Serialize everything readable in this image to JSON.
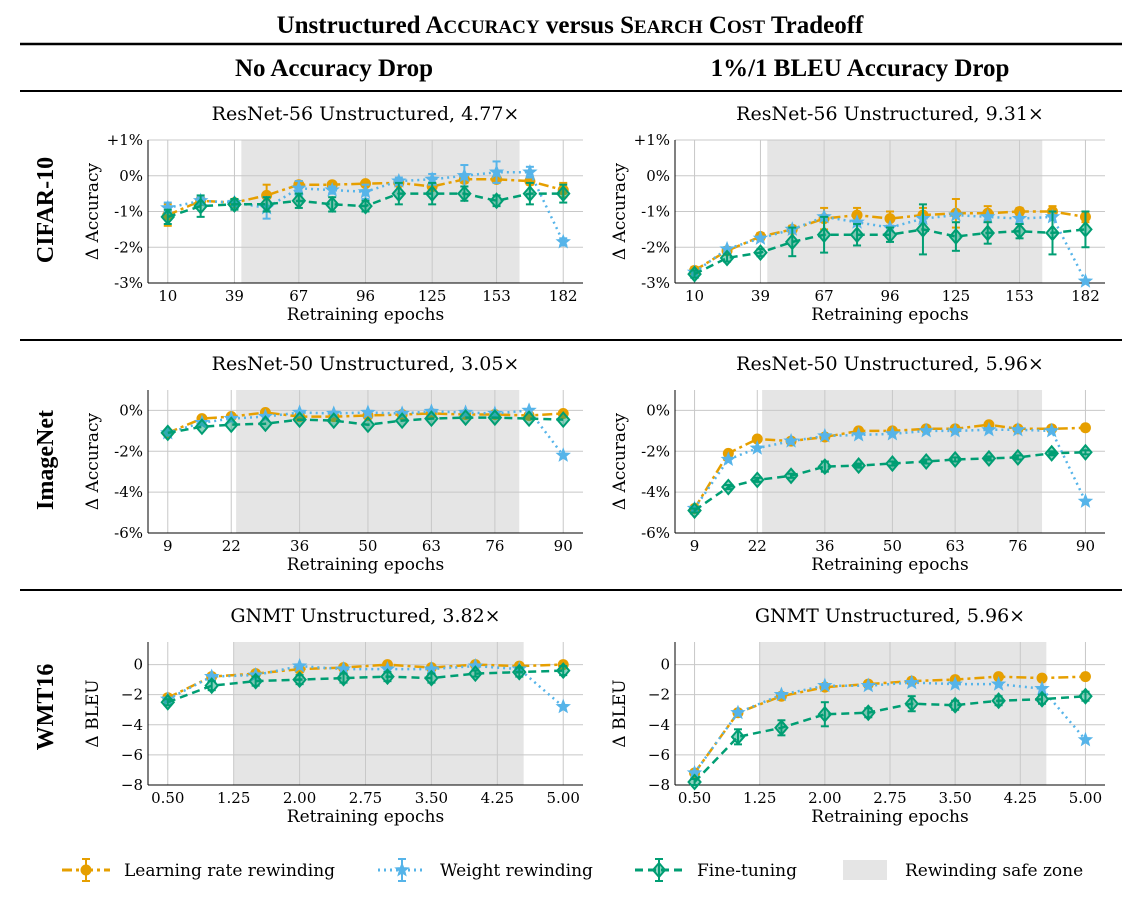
{
  "figure": {
    "title_parts": [
      "Unstructured ",
      "A",
      "CCURACY",
      " versus ",
      "S",
      "EARCH",
      " C",
      "OST",
      " Tradeoff"
    ],
    "col_headers": [
      "No Accuracy Drop",
      "1%/1 BLEU Accuracy Drop"
    ],
    "row_labels": [
      "CIFAR-10",
      "ImageNet",
      "WMT16"
    ],
    "xlabel": "Retraining epochs",
    "colors": {
      "lr": "#E69F00",
      "wr": "#56B4E9",
      "ft": "#009E73",
      "safe": "#E5E5E5",
      "grid": "#C8C8C8"
    }
  },
  "legend": [
    {
      "key": "lr",
      "label": "Learning rate rewinding",
      "marker": "circle",
      "dash": "dashdot"
    },
    {
      "key": "wr",
      "label": "Weight rewinding",
      "marker": "star",
      "dash": "dotted"
    },
    {
      "key": "ft",
      "label": "Fine-tuning",
      "marker": "diamond",
      "dash": "dashed"
    },
    {
      "key": "safe",
      "label": "Rewinding safe zone",
      "marker": "patch",
      "dash": "none"
    }
  ],
  "chart_data": [
    {
      "type": "line",
      "title": "ResNet-56 Unstructured, 4.77×",
      "ylabel": "Δ Accuracy",
      "x": [
        10,
        24.3,
        39,
        53,
        67,
        81.5,
        96,
        110.5,
        125,
        139,
        153,
        167.5,
        182
      ],
      "xticks": [
        10,
        39,
        67,
        96,
        125,
        153,
        182
      ],
      "xtick_labels": [
        "10",
        "39",
        "67",
        "96",
        "125",
        "153",
        "182"
      ],
      "yticks": [
        -3,
        -2,
        -1,
        0,
        1
      ],
      "ytick_labels": [
        "-3%",
        "-2%",
        "-1%",
        "0%",
        "+1%"
      ],
      "ylim": [
        -3,
        1
      ],
      "safe_zone": [
        42,
        163
      ],
      "series": [
        {
          "name": "Learning rate rewinding",
          "key": "lr",
          "values": [
            -1.1,
            -0.7,
            -0.75,
            -0.55,
            -0.25,
            -0.25,
            -0.22,
            -0.2,
            -0.3,
            -0.1,
            -0.1,
            -0.15,
            -0.4
          ],
          "err": [
            0.3,
            0.1,
            0.1,
            0.3,
            0.1,
            0.05,
            0.05,
            0.05,
            0.1,
            0.1,
            0.1,
            0.1,
            0.2
          ]
        },
        {
          "name": "Weight rewinding",
          "key": "wr",
          "values": [
            -0.9,
            -0.7,
            -0.75,
            -0.9,
            -0.35,
            -0.4,
            -0.45,
            -0.15,
            -0.1,
            0.0,
            0.1,
            0.1,
            -1.85
          ],
          "err": [
            0.15,
            0.1,
            0.1,
            0.3,
            0.2,
            0.1,
            0.2,
            0.1,
            0.15,
            0.3,
            0.3,
            0.15,
            0.1
          ]
        },
        {
          "name": "Fine-tuning",
          "key": "ft",
          "values": [
            -1.15,
            -0.85,
            -0.8,
            -0.8,
            -0.7,
            -0.8,
            -0.85,
            -0.5,
            -0.5,
            -0.5,
            -0.7,
            -0.5,
            -0.5
          ],
          "err": [
            0.2,
            0.3,
            0.15,
            0.2,
            0.2,
            0.2,
            0.15,
            0.3,
            0.3,
            0.2,
            0.15,
            0.3,
            0.25
          ]
        }
      ]
    },
    {
      "type": "line",
      "title": "ResNet-56 Unstructured, 9.31×",
      "ylabel": "Δ Accuracy",
      "x": [
        10,
        24.3,
        39,
        53,
        67,
        81.5,
        96,
        110.5,
        125,
        139,
        153,
        167.5,
        182
      ],
      "xticks": [
        10,
        39,
        67,
        96,
        125,
        153,
        182
      ],
      "xtick_labels": [
        "10",
        "39",
        "67",
        "96",
        "125",
        "153",
        "182"
      ],
      "yticks": [
        -3,
        -2,
        -1,
        0,
        1
      ],
      "ytick_labels": [
        "-3%",
        "-2%",
        "-1%",
        "0%",
        "+1%"
      ],
      "ylim": [
        -3,
        1
      ],
      "safe_zone": [
        42,
        163
      ],
      "series": [
        {
          "name": "Learning rate rewinding",
          "key": "lr",
          "values": [
            -2.65,
            -2.1,
            -1.7,
            -1.5,
            -1.2,
            -1.1,
            -1.2,
            -1.1,
            -1.05,
            -1.05,
            -1.0,
            -1.0,
            -1.15
          ],
          "err": [
            0.1,
            0.1,
            0.1,
            0.1,
            0.3,
            0.2,
            0.2,
            0.2,
            0.4,
            0.2,
            0.1,
            0.15,
            0.15
          ]
        },
        {
          "name": "Weight rewinding",
          "key": "wr",
          "values": [
            -2.7,
            -2.05,
            -1.75,
            -1.5,
            -1.15,
            -1.3,
            -1.45,
            -1.2,
            -1.1,
            -1.15,
            -1.2,
            -1.15,
            -2.95
          ]
        },
        {
          "name": "Fine-tuning",
          "key": "ft",
          "values": [
            -2.75,
            -2.3,
            -2.15,
            -1.85,
            -1.65,
            -1.65,
            -1.65,
            -1.5,
            -1.7,
            -1.6,
            -1.55,
            -1.6,
            -1.5
          ],
          "err": [
            0.1,
            0.1,
            0.1,
            0.4,
            0.5,
            0.3,
            0.2,
            0.7,
            0.4,
            0.3,
            0.2,
            0.6,
            0.5
          ]
        }
      ]
    },
    {
      "type": "line",
      "title": "ResNet-50 Unstructured, 3.05×",
      "ylabel": "Δ Accuracy",
      "x": [
        9,
        16,
        22,
        29,
        36,
        43,
        50,
        57,
        63,
        70,
        76,
        83,
        90
      ],
      "xticks": [
        9,
        22,
        36,
        50,
        63,
        76,
        90
      ],
      "xtick_labels": [
        "9",
        "22",
        "36",
        "50",
        "63",
        "76",
        "90"
      ],
      "yticks": [
        -6,
        -4,
        -2,
        0
      ],
      "ytick_labels": [
        "-6%",
        "-4%",
        "-2%",
        "0%"
      ],
      "ylim": [
        -6,
        1
      ],
      "safe_zone": [
        23,
        81
      ],
      "series": [
        {
          "name": "Learning rate rewinding",
          "key": "lr",
          "values": [
            -1.1,
            -0.4,
            -0.3,
            -0.1,
            -0.3,
            -0.3,
            -0.25,
            -0.2,
            -0.15,
            -0.2,
            -0.2,
            -0.25,
            -0.15
          ]
        },
        {
          "name": "Weight rewinding",
          "key": "wr",
          "values": [
            -1.1,
            -0.6,
            -0.4,
            -0.3,
            -0.1,
            -0.15,
            -0.1,
            -0.15,
            -0.05,
            -0.1,
            -0.15,
            0.0,
            -2.2
          ]
        },
        {
          "name": "Fine-tuning",
          "key": "ft",
          "values": [
            -1.1,
            -0.8,
            -0.7,
            -0.65,
            -0.45,
            -0.5,
            -0.7,
            -0.5,
            -0.4,
            -0.35,
            -0.35,
            -0.4,
            -0.45
          ]
        }
      ]
    },
    {
      "type": "line",
      "title": "ResNet-50 Unstructured, 5.96×",
      "ylabel": "Δ Accuracy",
      "x": [
        9,
        16,
        22,
        29,
        36,
        43,
        50,
        57,
        63,
        70,
        76,
        83,
        90
      ],
      "xticks": [
        9,
        22,
        36,
        50,
        63,
        76,
        90
      ],
      "xtick_labels": [
        "9",
        "22",
        "36",
        "50",
        "63",
        "76",
        "90"
      ],
      "yticks": [
        -6,
        -4,
        -2,
        0
      ],
      "ytick_labels": [
        "-6%",
        "-4%",
        "-2%",
        "0%"
      ],
      "ylim": [
        -6,
        1
      ],
      "safe_zone": [
        23,
        81
      ],
      "series": [
        {
          "name": "Learning rate rewinding",
          "key": "lr",
          "values": [
            -4.8,
            -2.1,
            -1.4,
            -1.5,
            -1.3,
            -1.0,
            -1.0,
            -0.9,
            -0.9,
            -0.7,
            -0.9,
            -0.9,
            -0.85
          ],
          "err": [
            0.05,
            0.1,
            0.1,
            0.1,
            0.1,
            0.1,
            0.1,
            0.1,
            0.1,
            0.1,
            0.1,
            0.1,
            0.15
          ]
        },
        {
          "name": "Weight rewinding",
          "key": "wr",
          "values": [
            -4.8,
            -2.4,
            -1.85,
            -1.5,
            -1.25,
            -1.2,
            -1.15,
            -1.0,
            -1.0,
            -0.95,
            -0.95,
            -1.0,
            -4.45
          ]
        },
        {
          "name": "Fine-tuning",
          "key": "ft",
          "values": [
            -4.9,
            -3.75,
            -3.4,
            -3.2,
            -2.75,
            -2.7,
            -2.6,
            -2.5,
            -2.4,
            -2.35,
            -2.3,
            -2.1,
            -2.05
          ],
          "err": [
            0.1,
            0.1,
            0.1,
            0.1,
            0.25,
            0.1,
            0.1,
            0.1,
            0.1,
            0.1,
            0.1,
            0.1,
            0.1
          ]
        }
      ]
    },
    {
      "type": "line",
      "title": "GNMT Unstructured, 3.82×",
      "ylabel": "Δ BLEU",
      "x": [
        0.5,
        1.0,
        1.5,
        2.0,
        2.5,
        3.0,
        3.5,
        4.0,
        4.5,
        5.0
      ],
      "xticks": [
        0.5,
        1.25,
        2.0,
        2.75,
        3.5,
        4.25,
        5.0
      ],
      "xtick_labels": [
        "0.50",
        "1.25",
        "2.00",
        "2.75",
        "3.50",
        "4.25",
        "5.00"
      ],
      "yticks": [
        -8,
        -6,
        -4,
        -2,
        0
      ],
      "ytick_labels": [
        "−8",
        "−6",
        "−4",
        "−2",
        "0"
      ],
      "ylim": [
        -8,
        1.5
      ],
      "safe_zone": [
        1.25,
        4.55
      ],
      "series": [
        {
          "name": "Learning rate rewinding",
          "key": "lr",
          "values": [
            -2.2,
            -0.8,
            -0.6,
            -0.3,
            -0.2,
            0.0,
            -0.2,
            0.0,
            -0.1,
            0.0
          ],
          "err": [
            0.2,
            0.2,
            0.2,
            0.2,
            0.2,
            0.2,
            0.2,
            0.2,
            0.2,
            0.2
          ]
        },
        {
          "name": "Weight rewinding",
          "key": "wr",
          "values": [
            -2.3,
            -0.8,
            -0.7,
            -0.1,
            -0.3,
            -0.3,
            -0.3,
            -0.1,
            -0.3,
            -2.8
          ]
        },
        {
          "name": "Fine-tuning",
          "key": "ft",
          "values": [
            -2.5,
            -1.4,
            -1.1,
            -1.0,
            -0.9,
            -0.8,
            -0.9,
            -0.6,
            -0.5,
            -0.4
          ],
          "err": [
            0.2,
            0.3,
            0.3,
            0.3,
            0.3,
            0.3,
            0.3,
            0.2,
            0.3,
            0.3
          ]
        }
      ]
    },
    {
      "type": "line",
      "title": "GNMT Unstructured, 5.96×",
      "ylabel": "Δ BLEU",
      "x": [
        0.5,
        1.0,
        1.5,
        2.0,
        2.5,
        3.0,
        3.5,
        4.0,
        4.5,
        5.0
      ],
      "xticks": [
        0.5,
        1.25,
        2.0,
        2.75,
        3.5,
        4.25,
        5.0
      ],
      "xtick_labels": [
        "0.50",
        "1.25",
        "2.00",
        "2.75",
        "3.50",
        "4.25",
        "5.00"
      ],
      "yticks": [
        -8,
        -6,
        -4,
        -2,
        0
      ],
      "ytick_labels": [
        "−8",
        "−6",
        "−4",
        "−2",
        "0"
      ],
      "ylim": [
        -8,
        1.5
      ],
      "safe_zone": [
        1.25,
        4.55
      ],
      "series": [
        {
          "name": "Learning rate rewinding",
          "key": "lr",
          "values": [
            -7.2,
            -3.2,
            -2.1,
            -1.5,
            -1.3,
            -1.1,
            -1.0,
            -0.8,
            -0.9,
            -0.8
          ],
          "err": [
            0.2,
            0.2,
            0.2,
            0.2,
            0.2,
            0.2,
            0.2,
            0.2,
            0.2,
            0.2
          ]
        },
        {
          "name": "Weight rewinding",
          "key": "wr",
          "values": [
            -7.2,
            -3.2,
            -2.0,
            -1.4,
            -1.4,
            -1.2,
            -1.3,
            -1.3,
            -1.6,
            -5.0
          ]
        },
        {
          "name": "Fine-tuning",
          "key": "ft",
          "values": [
            -7.8,
            -4.8,
            -4.2,
            -3.3,
            -3.2,
            -2.6,
            -2.7,
            -2.4,
            -2.3,
            -2.1
          ],
          "err": [
            0.2,
            0.5,
            0.5,
            0.8,
            0.3,
            0.5,
            0.3,
            0.3,
            0.3,
            0.3
          ]
        }
      ]
    }
  ]
}
